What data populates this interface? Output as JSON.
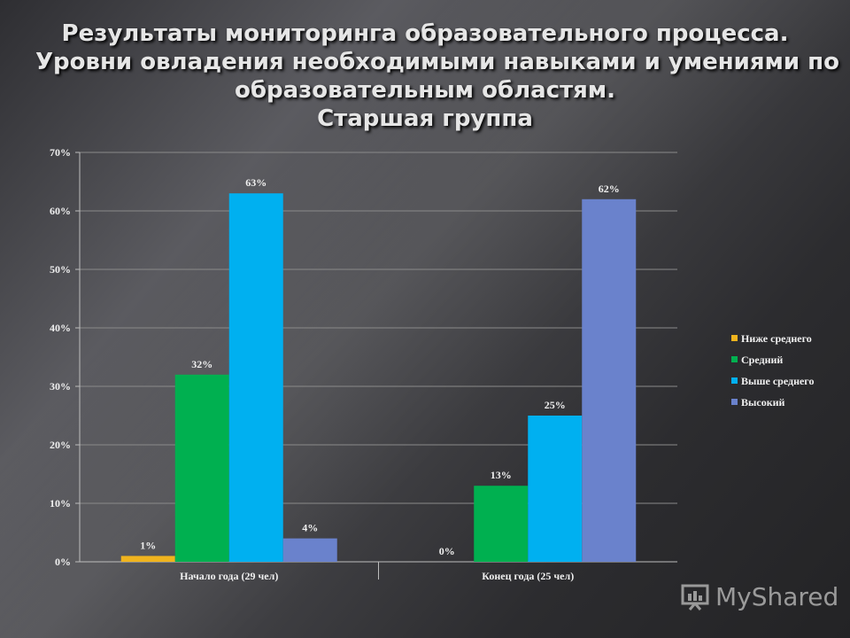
{
  "title": {
    "line1": "Результаты мониторинга образовательного процесса.",
    "line2": "Уровни  овладения необходимыми навыками и умениями по",
    "line3": "образовательным областям.",
    "line4": "Старшая группа"
  },
  "logo_text": "MyShared",
  "chart_data": {
    "type": "bar",
    "categories": [
      "Начало года (29 чел)",
      "Конец года (25 чел)"
    ],
    "series": [
      {
        "name": "Ниже среднего",
        "color": "#f0b41e",
        "values": [
          1,
          0
        ]
      },
      {
        "name": "Средний",
        "color": "#00b050",
        "values": [
          32,
          13
        ]
      },
      {
        "name": "Выше среднего",
        "color": "#00b0f0",
        "values": [
          63,
          25
        ]
      },
      {
        "name": "Высокий",
        "color": "#6a82cc",
        "values": [
          4,
          62
        ]
      }
    ],
    "data_labels": [
      [
        "1%",
        "0%"
      ],
      [
        "32%",
        "13%"
      ],
      [
        "63%",
        "25%"
      ],
      [
        "4%",
        "62%"
      ]
    ],
    "ylim": [
      0,
      70
    ],
    "yticks": [
      "0%",
      "10%",
      "20%",
      "30%",
      "40%",
      "50%",
      "60%",
      "70%"
    ],
    "grid": true,
    "legend": "right"
  }
}
